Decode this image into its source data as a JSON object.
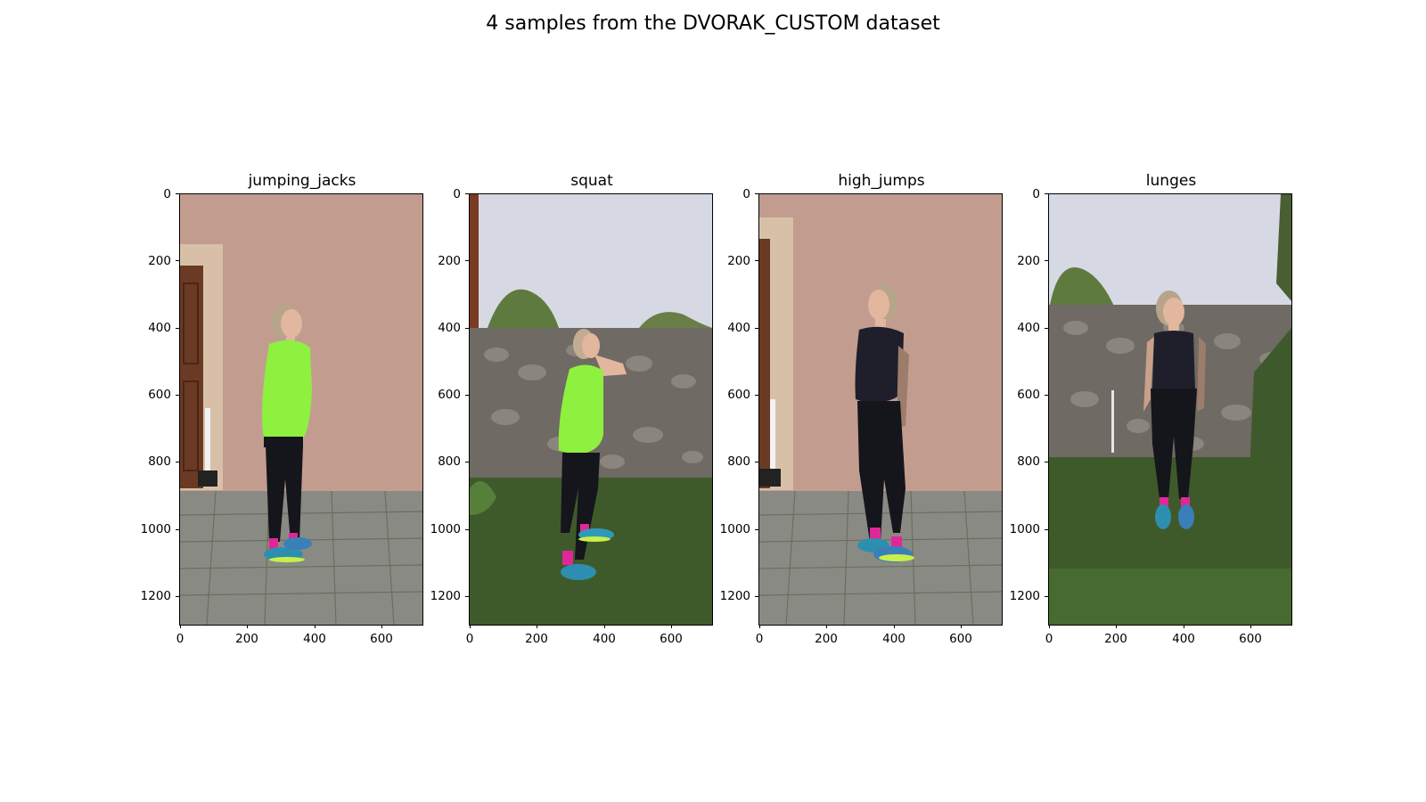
{
  "figure": {
    "title": "4 samples from the DVORAK_CUSTOM dataset"
  },
  "axes": {
    "y_ticks": [
      "0",
      "200",
      "400",
      "600",
      "800",
      "1000",
      "1200"
    ],
    "x_ticks": [
      "0",
      "200",
      "400",
      "600"
    ]
  },
  "panels": [
    {
      "label": "jumping_jacks",
      "scene": "wall",
      "shirt": "green"
    },
    {
      "label": "squat",
      "scene": "stone",
      "shirt": "green"
    },
    {
      "label": "high_jumps",
      "scene": "wall",
      "shirt": "black"
    },
    {
      "label": "lunges",
      "scene": "stone",
      "shirt": "black"
    }
  ],
  "colors": {
    "wall": "#c39c90",
    "paving": "#8a8a84",
    "sky": "#d6d9e4",
    "stone": "#6f6a63",
    "grass": "#3f5a2a",
    "green_shirt": "#8ef03f",
    "black_shirt": "#1e1f2a",
    "leggings": "#15151c",
    "door": "#6b3a24",
    "socks": "#e0279a",
    "shoes": "#2d8fb0"
  }
}
